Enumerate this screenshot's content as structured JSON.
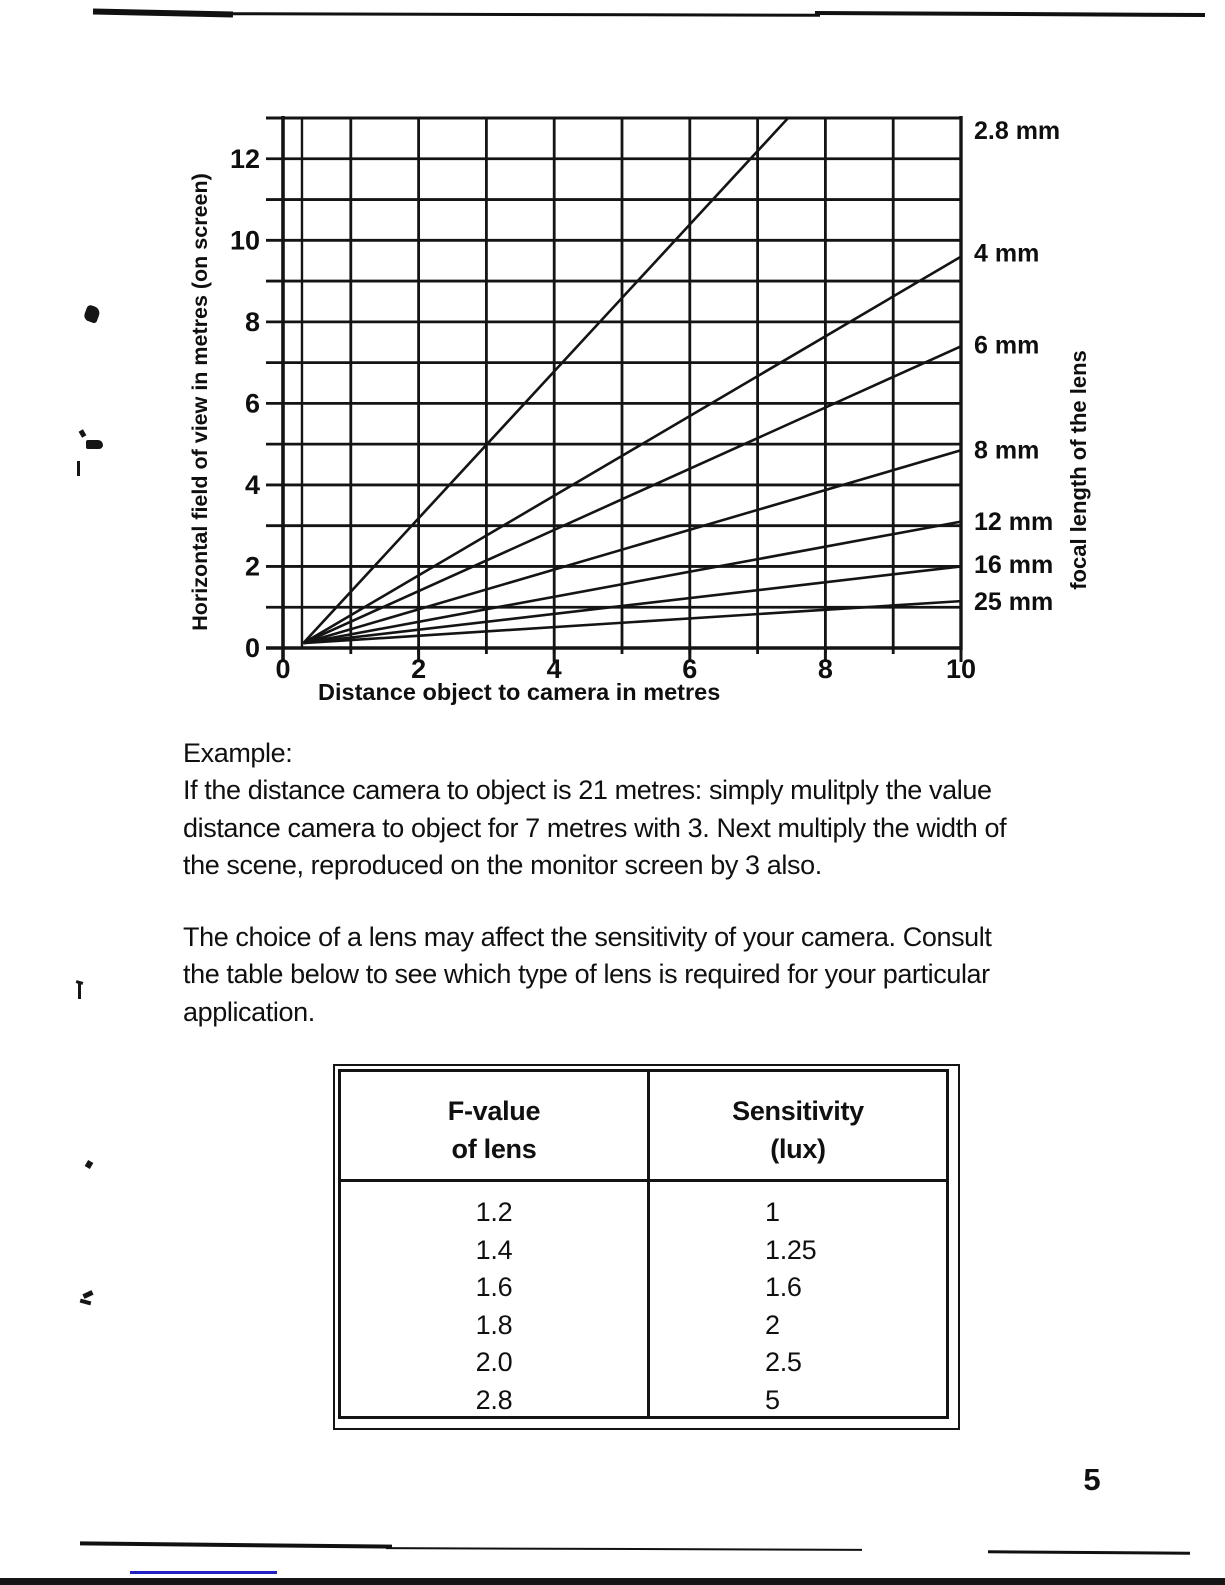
{
  "page": {
    "number": "5"
  },
  "chart_data": {
    "type": "line",
    "title": "",
    "xlabel": "Distance object to camera in metres",
    "ylabel": "Horizontal field of view in metres (on screen)",
    "right_axis_label": "focal length of the lens",
    "xlim": [
      0,
      10
    ],
    "ylim": [
      0,
      13
    ],
    "x_ticks": [
      0,
      2,
      4,
      6,
      8,
      10
    ],
    "y_ticks": [
      0,
      2,
      4,
      6,
      8,
      10,
      12
    ],
    "x_grid_step": 1,
    "y_grid_step": 1,
    "grid": true,
    "legend_position": "labels-at-right-edge",
    "series": [
      {
        "name": "2.8 mm",
        "x": [
          0.3,
          7.45
        ],
        "y": [
          0.12,
          13.0
        ],
        "label_y": 12.7
      },
      {
        "name": "4 mm",
        "x": [
          0.3,
          10
        ],
        "y": [
          0.12,
          9.6
        ],
        "label_y": 9.7
      },
      {
        "name": "6 mm",
        "x": [
          0.3,
          10
        ],
        "y": [
          0.12,
          7.4
        ],
        "label_y": 7.45
      },
      {
        "name": "8 mm",
        "x": [
          0.3,
          10
        ],
        "y": [
          0.12,
          4.85
        ],
        "label_y": 4.87
      },
      {
        "name": "12 mm",
        "x": [
          0.3,
          10
        ],
        "y": [
          0.12,
          3.1
        ],
        "label_y": 3.12
      },
      {
        "name": "16 mm",
        "x": [
          0.3,
          10
        ],
        "y": [
          0.12,
          2.0
        ],
        "label_y": 2.06
      },
      {
        "name": "25 mm",
        "x": [
          0.3,
          10
        ],
        "y": [
          0.12,
          1.15
        ],
        "label_y": 1.15
      }
    ]
  },
  "example": {
    "heading": "Example:",
    "lines": [
      "If the distance camera to object is 21 metres: simply mulitply the value",
      "distance camera to object for 7 metres with 3. Next multiply the width of",
      "the scene, reproduced on the monitor screen by 3 also."
    ]
  },
  "lens_note": {
    "lines": [
      "The choice of a lens may affect the sensitivity of your camera. Consult",
      "the table below to see which type of lens is required for your particular",
      "application."
    ]
  },
  "sensitivity_table": {
    "headers": [
      {
        "line1": "F-value",
        "line2": "of lens"
      },
      {
        "line1": "Sensitivity",
        "line2": "(lux)"
      }
    ],
    "rows": [
      {
        "f_value": "1.2",
        "sensitivity": "1"
      },
      {
        "f_value": "1.4",
        "sensitivity": "1.25"
      },
      {
        "f_value": "1.6",
        "sensitivity": "1.6"
      },
      {
        "f_value": "1.8",
        "sensitivity": "2"
      },
      {
        "f_value": "2.0",
        "sensitivity": "2.5"
      },
      {
        "f_value": "2.8",
        "sensitivity": "5"
      }
    ]
  }
}
